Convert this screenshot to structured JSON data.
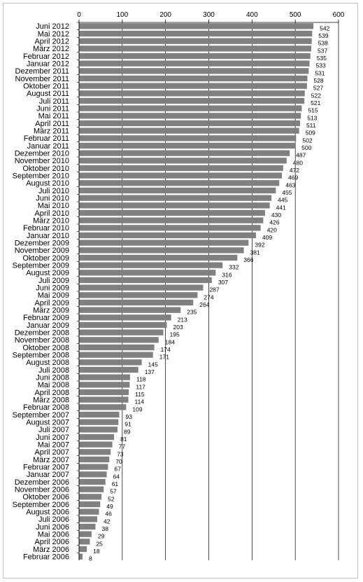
{
  "chart_data": {
    "type": "bar",
    "orientation": "horizontal",
    "title": "",
    "xlabel": "",
    "ylabel": "",
    "xlim": [
      0,
      600
    ],
    "x_ticks": [
      0,
      100,
      200,
      300,
      400,
      500,
      600
    ],
    "x_tick_labels": [
      "0",
      "100",
      "200",
      "300",
      "400",
      "500",
      "600"
    ],
    "axis_position": "top",
    "grid": true,
    "legend": "none",
    "bar_color": "#808080",
    "categories": [
      "Juni 2012",
      "Mai 2012",
      "April 2012",
      "März 2012",
      "Februar 2012",
      "Januar 2012",
      "Dezember 2011",
      "November 2011",
      "Oktober 2011",
      "August 2011",
      "Juli 2011",
      "Juni 2011",
      "Mai 2011",
      "April 2011",
      "März 2011",
      "Februar 2011",
      "Januar 2011",
      "Dezember 2010",
      "November 2010",
      "Oktober 2010",
      "September 2010",
      "August 2010",
      "Juli 2010",
      "Juni 2010",
      "Mai 2010",
      "April 2010",
      "März 2010",
      "Februar 2010",
      "Januar 2010",
      "Dezember 2009",
      "November 2009",
      "Oktober 2009",
      "September 2009",
      "August 2009",
      "Juli 2009",
      "Juni 2009",
      "Mai 2009",
      "April 2009",
      "März 2009",
      "Februar 2009",
      "Januar 2009",
      "Dezember 2008",
      "November 2008",
      "Oktober 2008",
      "September 2008",
      "August 2008",
      "Juli 2008",
      "Juni 2008",
      "Mai 2008",
      "April 2008",
      "März 2008",
      "Februar 2008",
      "September 2007",
      "August 2007",
      "Juli 2007",
      "Juni 2007",
      "Mai 2007",
      "April 2007",
      "März 2007",
      "Februar 2007",
      "Januar 2007",
      "Dezember 2006",
      "November 2006",
      "Oktober 2006",
      "September 2006",
      "August 2006",
      "Juli 2006",
      "Juni 2006",
      "Mai 2006",
      "April 2006",
      "März 2006",
      "Februar 2006"
    ],
    "values": [
      542,
      539,
      538,
      537,
      535,
      533,
      531,
      528,
      527,
      522,
      521,
      515,
      513,
      511,
      509,
      502,
      500,
      487,
      480,
      472,
      469,
      463,
      455,
      445,
      441,
      430,
      426,
      420,
      409,
      392,
      381,
      366,
      332,
      316,
      307,
      287,
      274,
      264,
      235,
      213,
      203,
      195,
      184,
      174,
      171,
      145,
      137,
      118,
      117,
      115,
      114,
      109,
      93,
      91,
      89,
      81,
      77,
      73,
      70,
      67,
      64,
      61,
      57,
      52,
      49,
      46,
      42,
      38,
      29,
      25,
      18,
      8
    ]
  }
}
